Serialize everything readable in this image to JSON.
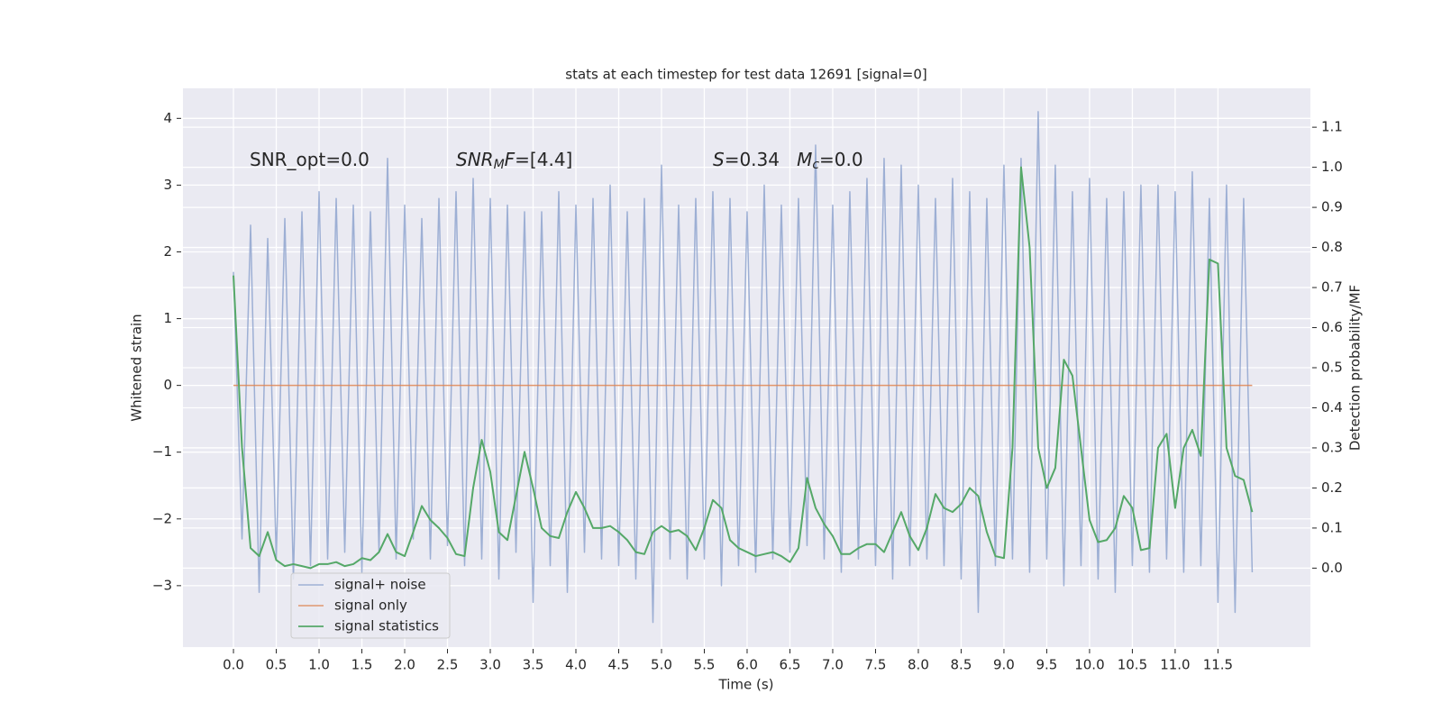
{
  "chart_data": {
    "type": "line",
    "title": "stats at each timestep for test data 12691 [signal=0]",
    "xlabel": "Time (s)",
    "ylabel": "Whitened strain",
    "y2label": "Detection probability/MF",
    "annotations": [
      [
        {
          "text": "SNR_opt=0.0",
          "style": "normal"
        }
      ],
      [
        {
          "text": "SNR",
          "style": "italic"
        },
        {
          "text": "M",
          "style": "italic-sub"
        },
        {
          "text": "F",
          "style": "italic"
        },
        {
          "text": "=[4.4]",
          "style": "normal"
        }
      ],
      [
        {
          "text": "S",
          "style": "italic"
        },
        {
          "text": "=0.34   ",
          "style": "normal"
        },
        {
          "text": "M",
          "style": "italic"
        },
        {
          "text": "c",
          "style": "italic-sub"
        },
        {
          "text": "=0.0",
          "style": "normal"
        }
      ]
    ],
    "x": [
      0.0,
      0.1,
      0.2,
      0.3,
      0.4,
      0.5,
      0.6,
      0.7,
      0.8,
      0.9,
      1.0,
      1.1,
      1.2,
      1.3,
      1.4,
      1.5,
      1.6,
      1.7,
      1.8,
      1.9,
      2.0,
      2.1,
      2.2,
      2.3,
      2.4,
      2.5,
      2.6,
      2.7,
      2.8,
      2.9,
      3.0,
      3.1,
      3.2,
      3.3,
      3.4,
      3.5,
      3.6,
      3.7,
      3.8,
      3.9,
      4.0,
      4.1,
      4.2,
      4.3,
      4.4,
      4.5,
      4.6,
      4.7,
      4.8,
      4.9,
      5.0,
      5.1,
      5.2,
      5.3,
      5.4,
      5.5,
      5.6,
      5.7,
      5.8,
      5.9,
      6.0,
      6.1,
      6.2,
      6.3,
      6.4,
      6.5,
      6.6,
      6.7,
      6.8,
      6.9,
      7.0,
      7.1,
      7.2,
      7.3,
      7.4,
      7.5,
      7.6,
      7.7,
      7.8,
      7.9,
      8.0,
      8.1,
      8.2,
      8.3,
      8.4,
      8.5,
      8.6,
      8.7,
      8.8,
      8.9,
      9.0,
      9.1,
      9.2,
      9.3,
      9.4,
      9.5,
      9.6,
      9.7,
      9.8,
      9.9,
      10.0,
      10.1,
      10.2,
      10.3,
      10.4,
      10.5,
      10.6,
      10.7,
      10.8,
      10.9,
      11.0,
      11.1,
      11.2,
      11.3,
      11.4,
      11.5,
      11.6,
      11.7,
      11.8,
      11.9
    ],
    "series": [
      {
        "name": "signal+ noise",
        "color": "#8fa4cf",
        "axis": "y",
        "values": [
          1.7,
          -2.3,
          2.4,
          -3.1,
          2.2,
          -2.6,
          2.5,
          -2.9,
          2.6,
          -2.7,
          2.9,
          -2.6,
          2.8,
          -2.5,
          2.7,
          -2.8,
          2.6,
          -2.5,
          3.4,
          -2.6,
          2.7,
          -2.3,
          2.5,
          -2.6,
          2.8,
          -2.4,
          2.9,
          -2.7,
          3.1,
          -2.6,
          2.8,
          -2.9,
          2.7,
          -2.5,
          2.6,
          -3.25,
          2.6,
          -2.7,
          2.9,
          -3.1,
          2.7,
          -2.5,
          2.8,
          -2.6,
          3.0,
          -2.7,
          2.6,
          -2.9,
          2.8,
          -3.55,
          3.3,
          -2.6,
          2.7,
          -2.9,
          2.8,
          -2.6,
          2.9,
          -3.0,
          2.8,
          -2.7,
          2.6,
          -2.8,
          3.0,
          -2.6,
          2.7,
          -2.5,
          2.8,
          -2.4,
          3.6,
          -2.6,
          2.7,
          -2.8,
          2.9,
          -2.6,
          3.1,
          -2.7,
          3.4,
          -2.9,
          3.3,
          -2.7,
          3.0,
          -2.6,
          2.8,
          -2.7,
          3.1,
          -2.9,
          2.9,
          -3.4,
          2.8,
          -2.7,
          3.3,
          -2.6,
          3.4,
          -2.8,
          4.1,
          -2.6,
          3.3,
          -3.0,
          2.9,
          -2.7,
          3.1,
          -2.9,
          2.8,
          -3.1,
          2.9,
          -2.7,
          3.0,
          -2.8,
          3.0,
          -2.6,
          2.9,
          -2.8,
          3.2,
          -2.7,
          2.8,
          -3.25,
          3.0,
          -3.4,
          2.8,
          -2.8
        ]
      },
      {
        "name": "signal only",
        "color": "#dd8452",
        "axis": "y",
        "x": [
          0.0,
          11.9
        ],
        "values": [
          0,
          0
        ]
      },
      {
        "name": "signal statistics",
        "color": "#55a868",
        "axis": "y2",
        "values": [
          0.73,
          0.3,
          0.05,
          0.03,
          0.09,
          0.02,
          0.005,
          0.01,
          0.005,
          0.0,
          0.01,
          0.01,
          0.015,
          0.005,
          0.01,
          0.025,
          0.02,
          0.04,
          0.085,
          0.04,
          0.03,
          0.09,
          0.155,
          0.12,
          0.1,
          0.075,
          0.035,
          0.03,
          0.2,
          0.32,
          0.24,
          0.09,
          0.07,
          0.18,
          0.29,
          0.2,
          0.1,
          0.08,
          0.075,
          0.14,
          0.19,
          0.15,
          0.1,
          0.1,
          0.105,
          0.09,
          0.07,
          0.04,
          0.035,
          0.09,
          0.105,
          0.09,
          0.095,
          0.08,
          0.045,
          0.1,
          0.17,
          0.15,
          0.07,
          0.05,
          0.04,
          0.03,
          0.035,
          0.04,
          0.03,
          0.015,
          0.05,
          0.225,
          0.15,
          0.11,
          0.08,
          0.035,
          0.035,
          0.05,
          0.06,
          0.06,
          0.04,
          0.09,
          0.14,
          0.08,
          0.045,
          0.1,
          0.185,
          0.15,
          0.14,
          0.16,
          0.2,
          0.18,
          0.09,
          0.03,
          0.025,
          0.3,
          1.0,
          0.8,
          0.3,
          0.2,
          0.25,
          0.52,
          0.48,
          0.3,
          0.12,
          0.065,
          0.07,
          0.1,
          0.18,
          0.15,
          0.045,
          0.05,
          0.3,
          0.335,
          0.15,
          0.3,
          0.345,
          0.28,
          0.77,
          0.76,
          0.3,
          0.23,
          0.22,
          0.14
        ]
      }
    ],
    "xlim": [
      -0.59,
      12.58
    ],
    "xticks": [
      {
        "value": 0,
        "label": "0.0"
      },
      0.5,
      {
        "value": 1,
        "label": "1.0"
      },
      1.5,
      {
        "value": 2,
        "label": "2.0"
      },
      2.5,
      {
        "value": 3,
        "label": "3.0"
      },
      3.5,
      {
        "value": 4,
        "label": "4.0"
      },
      4.5,
      {
        "value": 5,
        "label": "5.0"
      },
      5.5,
      {
        "value": 6,
        "label": "6.0"
      },
      6.5,
      {
        "value": 7,
        "label": "7.0"
      },
      7.5,
      {
        "value": 8,
        "label": "8.0"
      },
      8.5,
      {
        "value": 9,
        "label": "9.0"
      },
      9.5,
      {
        "value": 10,
        "label": "10.0"
      },
      10.5,
      {
        "value": 11,
        "label": "11.0"
      },
      11.5
    ],
    "ylim": [
      -3.92,
      4.45
    ],
    "yticks": [
      {
        "value": -3,
        "label": "−3"
      },
      {
        "value": -2,
        "label": "−2"
      },
      {
        "value": -1,
        "label": "−1"
      },
      0,
      1,
      2,
      3,
      4
    ],
    "y2lim": [
      -0.197,
      1.197
    ],
    "y2ticks": [
      {
        "value": 0,
        "label": "0.0"
      },
      0.1,
      0.2,
      0.3,
      0.4,
      0.5,
      0.6,
      0.7,
      0.8,
      0.9,
      {
        "value": 1,
        "label": "1.0"
      },
      1.1
    ],
    "grid": true,
    "legend": "lower left"
  }
}
